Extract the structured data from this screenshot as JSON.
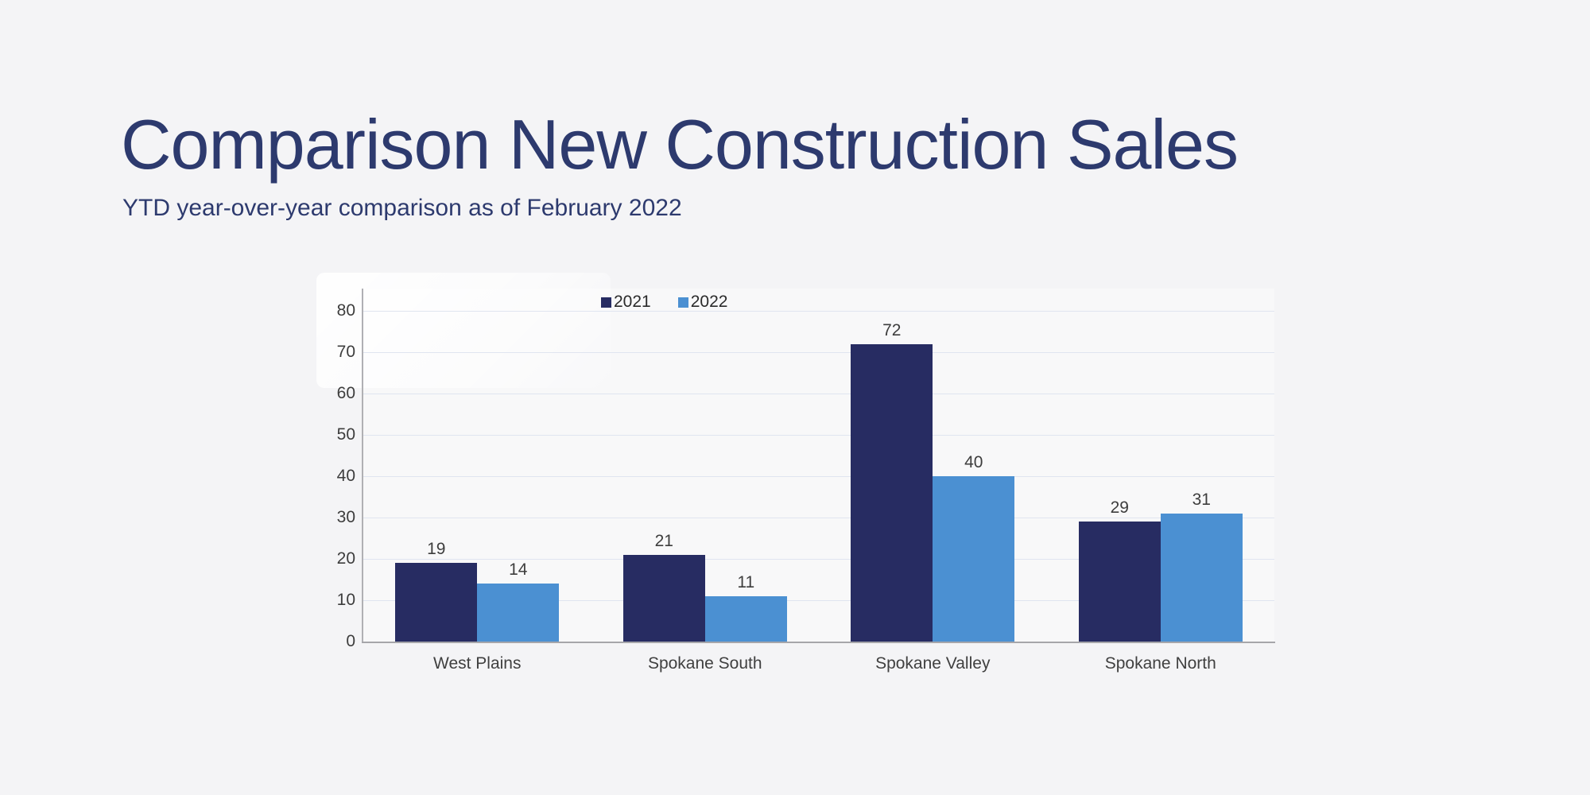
{
  "header": {
    "title": "Comparison New Construction Sales",
    "subtitle": "YTD year-over-year comparison as of February 2022"
  },
  "chart_data": {
    "type": "bar",
    "categories": [
      "West Plains",
      "Spokane South",
      "Spokane Valley",
      "Spokane North"
    ],
    "series": [
      {
        "name": "2021",
        "color": "#272c62",
        "values": [
          19,
          21,
          72,
          29
        ]
      },
      {
        "name": "2022",
        "color": "#4b90d2",
        "values": [
          14,
          11,
          40,
          31
        ]
      }
    ],
    "title": "",
    "xlabel": "",
    "ylabel": "",
    "ylim": [
      0,
      80
    ],
    "ytick_step": 10,
    "yticks": [
      0,
      10,
      20,
      30,
      40,
      50,
      60,
      70,
      80
    ],
    "grid": true,
    "legend_position": "top",
    "value_labels": true
  },
  "colors": {
    "background": "#f4f4f6",
    "title_text": "#2d3a6e",
    "axis_line": "#a6a6aa",
    "gridline": "#e0e5f0",
    "tick_label": "#3d3d3d",
    "category_label": "#404040",
    "value_label": "#3d3d3d",
    "legend_text": "#2b2b2b"
  }
}
